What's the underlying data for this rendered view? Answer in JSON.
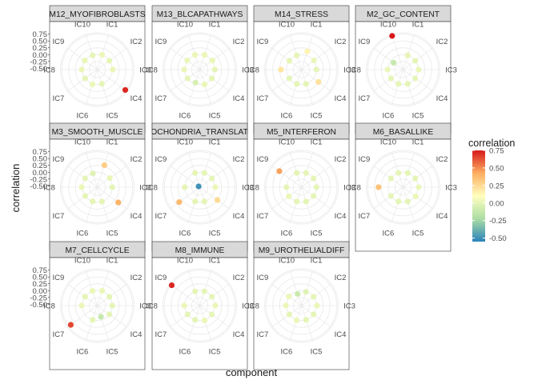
{
  "chart_data": {
    "type": "scatter",
    "coord": "polar",
    "x_label": "component",
    "y_label": "correlation",
    "y_ticks": [
      "0.75",
      "0.50",
      "0.25",
      "0.00",
      "-0.25",
      "-0.50"
    ],
    "y_tick_values": [
      0.75,
      0.5,
      0.25,
      0.0,
      -0.25,
      -0.5
    ],
    "r_range": [
      -0.55,
      0.8
    ],
    "components": [
      "IC1",
      "IC2",
      "IC3",
      "IC4",
      "IC5",
      "IC6",
      "IC7",
      "IC8",
      "IC9",
      "IC10"
    ],
    "legend": {
      "title": "correlation",
      "ticks": [
        "0.75",
        "0.50",
        "0.25",
        "0.00",
        "-0.25",
        "-0.50"
      ],
      "tick_values": [
        0.75,
        0.5,
        0.25,
        0.0,
        -0.25,
        -0.5
      ],
      "range": [
        -0.55,
        0.75
      ],
      "colors": [
        "#2b83ba",
        "#abdda4",
        "#ffffbf",
        "#fdae61",
        "#d7191c"
      ]
    },
    "facets": [
      {
        "title": "M12_MYOFIBROBLASTS",
        "values": [
          0.02,
          0.0,
          0.02,
          0.72,
          0.0,
          0.02,
          0.0,
          0.02,
          0.02,
          0.0
        ]
      },
      {
        "title": "M13_BLCAPATHWAYS",
        "values": [
          0.02,
          0.02,
          0.0,
          0.0,
          0.02,
          -0.05,
          0.0,
          0.02,
          0.02,
          0.02
        ]
      },
      {
        "title": "M14_STRESS",
        "values": [
          0.15,
          0.02,
          0.0,
          0.22,
          0.0,
          0.0,
          0.0,
          0.2,
          0.0,
          0.0
        ]
      },
      {
        "title": "M2_GC_CONTENT",
        "values": [
          0.0,
          0.0,
          0.02,
          0.0,
          0.0,
          0.0,
          0.0,
          0.02,
          -0.12,
          0.75
        ]
      },
      {
        "title": "M3_SMOOTH_MUSCLE",
        "values": [
          0.3,
          0.02,
          0.0,
          0.4,
          0.0,
          0.0,
          0.0,
          0.02,
          0.0,
          -0.02
        ]
      },
      {
        "title": "MITOCHONDRIA_TRANSLATION",
        "values": [
          0.0,
          0.0,
          0.02,
          0.25,
          0.0,
          0.0,
          0.38,
          0.0,
          -0.5,
          0.0
        ]
      },
      {
        "title": "M5_INTERFERON",
        "values": [
          0.0,
          0.0,
          0.0,
          0.0,
          0.0,
          0.0,
          0.02,
          0.0,
          0.45,
          0.0
        ]
      },
      {
        "title": "M6_BASALLIKE",
        "values": [
          0.0,
          0.0,
          0.02,
          0.02,
          0.0,
          0.0,
          0.0,
          0.35,
          0.0,
          0.0
        ]
      },
      {
        "title": "M7_CELLCYCLE",
        "values": [
          0.02,
          0.0,
          0.0,
          0.0,
          -0.12,
          0.0,
          0.65,
          0.02,
          0.0,
          0.02
        ]
      },
      {
        "title": "M8_IMMUNE",
        "values": [
          0.0,
          0.0,
          0.02,
          0.0,
          0.02,
          0.0,
          0.0,
          0.02,
          0.72,
          0.0
        ]
      },
      {
        "title": "M9_UROTHELIALDIFF",
        "values": [
          -0.02,
          0.0,
          0.02,
          0.0,
          0.0,
          0.02,
          0.0,
          0.02,
          0.02,
          -0.1
        ]
      }
    ]
  }
}
